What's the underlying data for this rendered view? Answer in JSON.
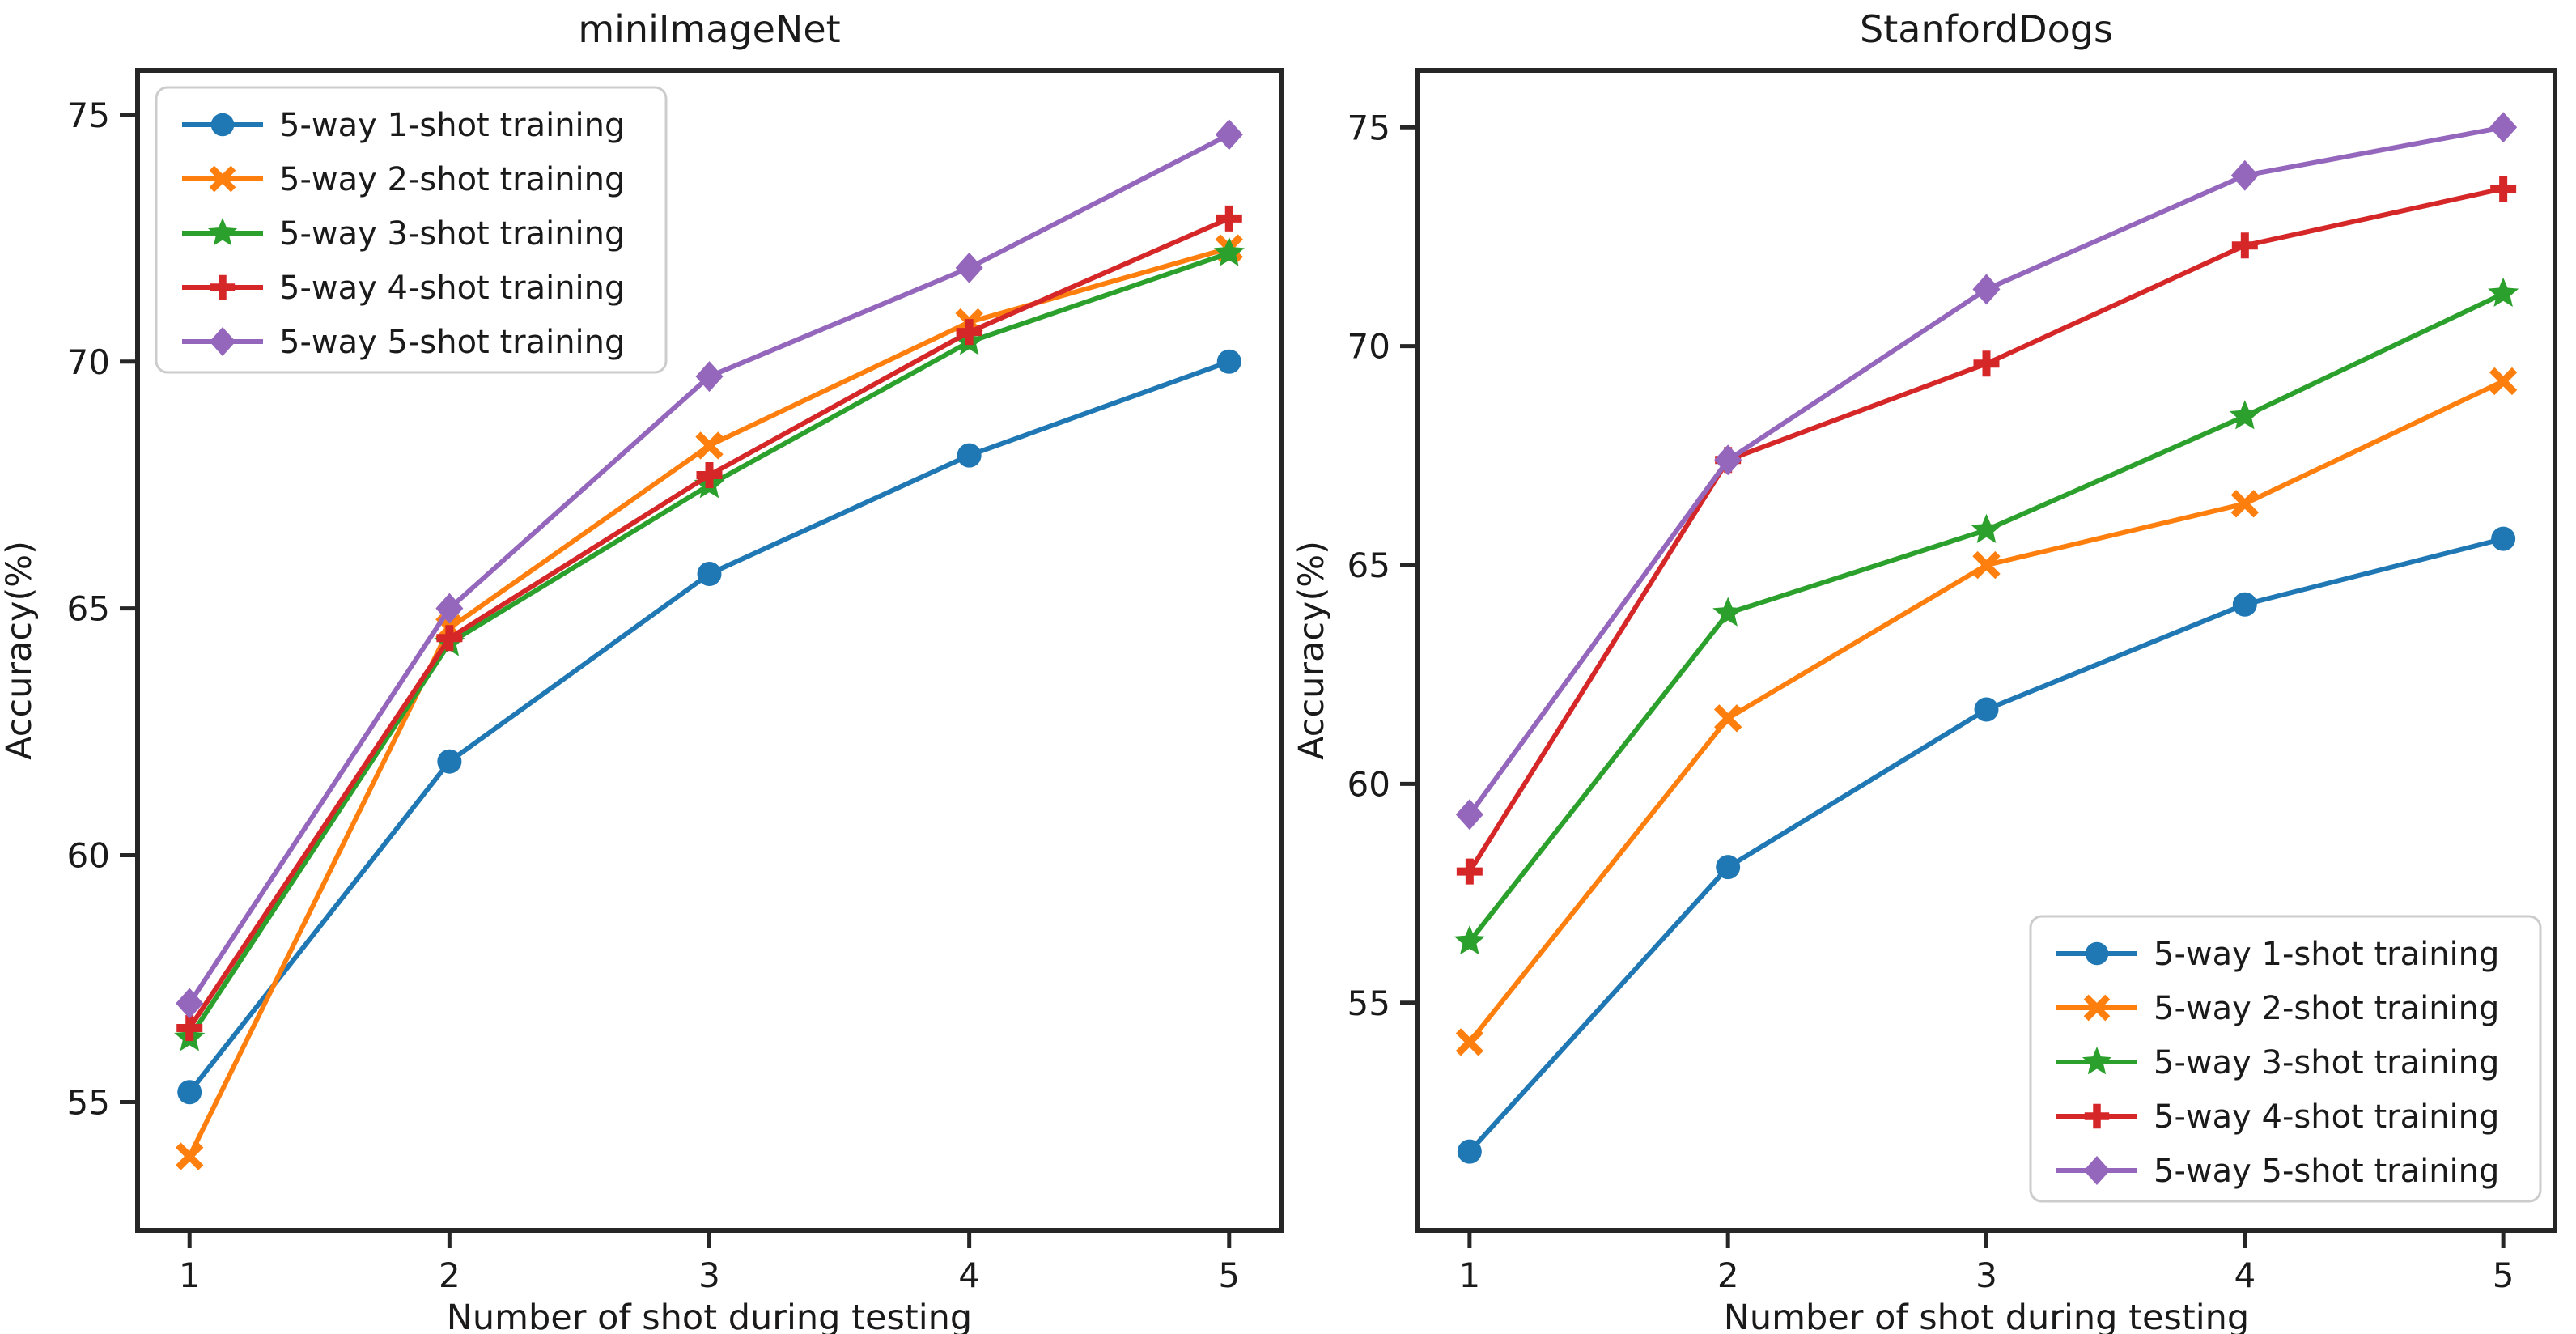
{
  "figure": {
    "background": "#ffffff",
    "text_color": "#1a1a1a",
    "spine_color": "#262626"
  },
  "chart_data": [
    {
      "type": "line",
      "title": "miniImageNet",
      "xlabel": "Number of shot during testing",
      "ylabel": "Accuracy(%)",
      "x": [
        1,
        2,
        3,
        4,
        5
      ],
      "xtick_labels": [
        "1",
        "2",
        "3",
        "4",
        "5"
      ],
      "ytick_values": [
        55,
        60,
        65,
        70,
        75
      ],
      "ytick_labels": [
        "55",
        "60",
        "65",
        "70",
        "75"
      ],
      "xlim": [
        0.8,
        5.2
      ],
      "ylim": [
        52.4,
        75.9
      ],
      "grid": false,
      "legend_location": "upper left",
      "series": [
        {
          "name": "5-way 1-shot training",
          "color": "#1f77b4",
          "marker": "circle",
          "values": [
            55.2,
            61.9,
            65.7,
            68.1,
            70.0
          ]
        },
        {
          "name": "5-way 2-shot training",
          "color": "#ff7f0e",
          "marker": "x",
          "values": [
            53.9,
            64.6,
            68.3,
            70.8,
            72.3
          ]
        },
        {
          "name": "5-way 3-shot training",
          "color": "#2ca02c",
          "marker": "star",
          "values": [
            56.3,
            64.3,
            67.5,
            70.4,
            72.2
          ]
        },
        {
          "name": "5-way 4-shot training",
          "color": "#d62728",
          "marker": "plus",
          "values": [
            56.5,
            64.4,
            67.7,
            70.6,
            72.9
          ]
        },
        {
          "name": "5-way 5-shot training",
          "color": "#9467bd",
          "marker": "diamond",
          "values": [
            57.0,
            65.0,
            69.7,
            71.9,
            74.6
          ]
        }
      ]
    },
    {
      "type": "line",
      "title": "StanfordDogs",
      "xlabel": "Number of shot during testing",
      "ylabel": "Accuracy(%)",
      "x": [
        1,
        2,
        3,
        4,
        5
      ],
      "xtick_labels": [
        "1",
        "2",
        "3",
        "4",
        "5"
      ],
      "ytick_values": [
        55,
        60,
        65,
        70,
        75
      ],
      "ytick_labels": [
        "55",
        "60",
        "65",
        "70",
        "75"
      ],
      "xlim": [
        0.8,
        5.2
      ],
      "ylim": [
        49.8,
        76.3
      ],
      "grid": false,
      "legend_location": "lower right",
      "series": [
        {
          "name": "5-way 1-shot training",
          "color": "#1f77b4",
          "marker": "circle",
          "values": [
            51.6,
            58.1,
            61.7,
            64.1,
            65.6
          ]
        },
        {
          "name": "5-way 2-shot training",
          "color": "#ff7f0e",
          "marker": "x",
          "values": [
            54.1,
            61.5,
            65.0,
            66.4,
            69.2
          ]
        },
        {
          "name": "5-way 3-shot training",
          "color": "#2ca02c",
          "marker": "star",
          "values": [
            56.4,
            63.9,
            65.8,
            68.4,
            71.2
          ]
        },
        {
          "name": "5-way 4-shot training",
          "color": "#d62728",
          "marker": "plus",
          "values": [
            58.0,
            67.4,
            69.6,
            72.3,
            73.6
          ]
        },
        {
          "name": "5-way 5-shot training",
          "color": "#9467bd",
          "marker": "diamond",
          "values": [
            59.3,
            67.4,
            71.3,
            73.9,
            75.0
          ]
        }
      ]
    }
  ]
}
